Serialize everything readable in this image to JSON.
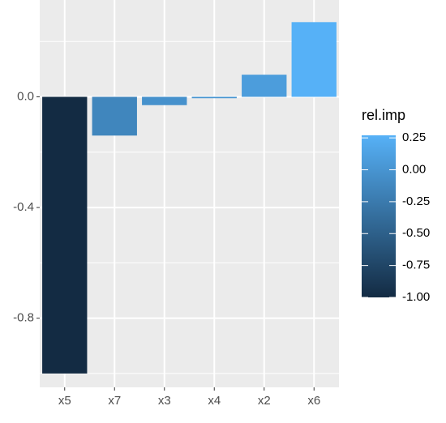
{
  "chart_data": {
    "type": "bar",
    "categories": [
      "x5",
      "x7",
      "x3",
      "x4",
      "x2",
      "x6"
    ],
    "values": [
      -1.0,
      -0.14,
      -0.03,
      -0.005,
      0.08,
      0.27
    ],
    "ylim": [
      -1.05,
      0.35
    ],
    "yticks": [
      {
        "value": 0,
        "label": "0.0"
      },
      {
        "value": -0.4,
        "label": "-0.4"
      },
      {
        "value": -0.8,
        "label": "-0.8"
      }
    ],
    "minor_yticks": [
      0.2,
      -0.2,
      -0.6,
      -1.0
    ],
    "grid": true,
    "legend": {
      "title": "rel.imp",
      "low": "#132B43",
      "high": "#56B1F7",
      "lim": [
        -1.0,
        0.27
      ],
      "ticks": [
        {
          "value": 0.25,
          "label": "0.25"
        },
        {
          "value": 0,
          "label": "0.00"
        },
        {
          "value": -0.25,
          "label": "-0.25"
        },
        {
          "value": -0.5,
          "label": "-0.50"
        },
        {
          "value": -0.75,
          "label": "-0.75"
        },
        {
          "value": -1.0,
          "label": "-1.00"
        }
      ]
    }
  }
}
